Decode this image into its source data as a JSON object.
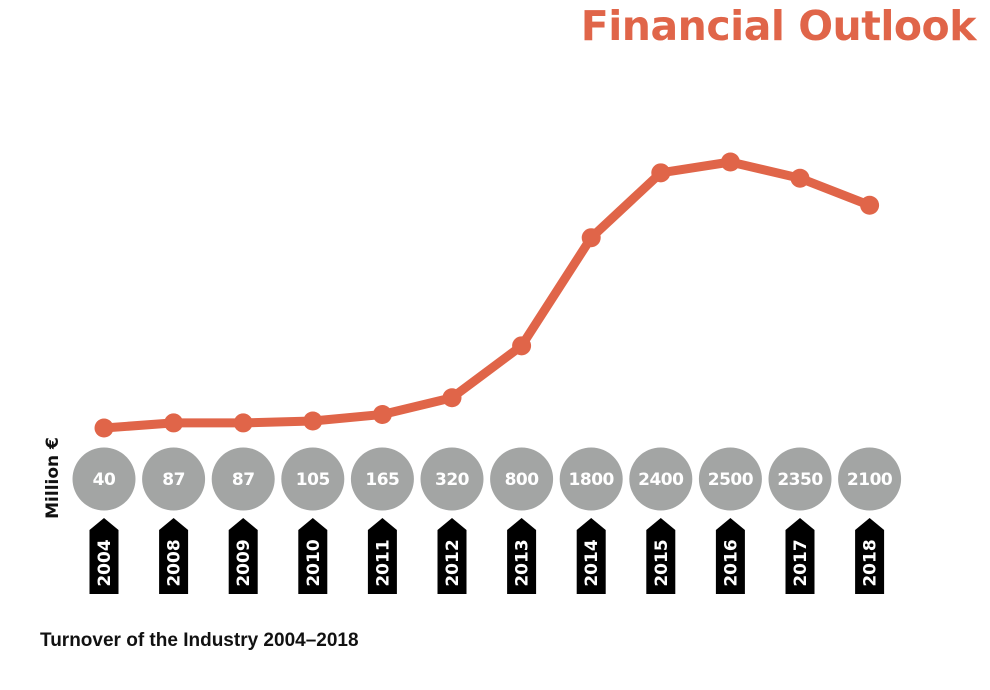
{
  "header": {
    "title": "Financial Outlook"
  },
  "colors": {
    "accent": "#e06549",
    "bubble": "#a3a5a4",
    "tag": "#000000"
  },
  "chart_data": {
    "type": "line",
    "title": "Financial Outlook",
    "caption": "Turnover of the Industry 2004–2018",
    "ylabel": "Million €",
    "xlabel": "",
    "categories": [
      "2004",
      "2008",
      "2009",
      "2010",
      "2011",
      "2012",
      "2013",
      "2014",
      "2015",
      "2016",
      "2017",
      "2018"
    ],
    "series": [
      {
        "values": [
          40,
          87,
          87,
          105,
          165,
          320,
          800,
          1800,
          2400,
          2500,
          2350,
          2100
        ]
      }
    ],
    "value_labels": [
      "40",
      "87",
      "87",
      "105",
      "165",
      "320",
      "800",
      "1800",
      "2400",
      "2500",
      "2350",
      "2100"
    ],
    "ylim": [
      0,
      2800
    ],
    "grid": false,
    "legend": "none"
  }
}
